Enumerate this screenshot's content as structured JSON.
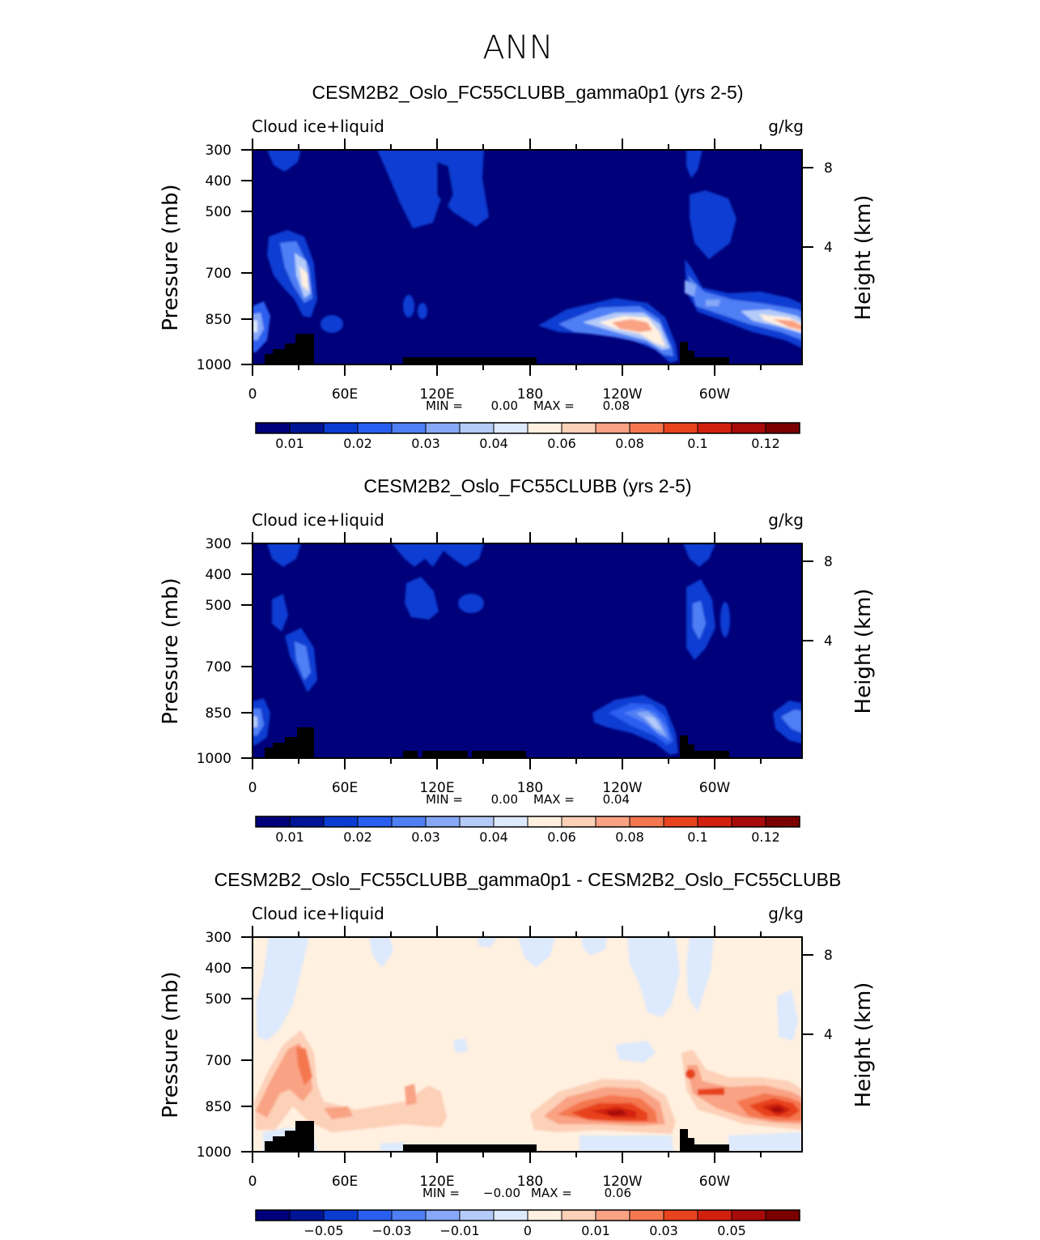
{
  "figure": {
    "title": "ANN"
  },
  "chart_data": [
    {
      "type": "heatmap",
      "title": "CESM2B2_Oslo_FC55CLUBB_gamma0p1 (yrs 2-5)",
      "left_string": "Cloud ice+liquid",
      "right_string": "g/kg",
      "ylabel": "Pressure (mb)",
      "y2label": "Height (km)",
      "xticks": [
        "0",
        "60E",
        "120E",
        "180",
        "120W",
        "60W"
      ],
      "yticks": [
        "300",
        "400",
        "500",
        "700",
        "850",
        "1000"
      ],
      "y2ticks": [
        "8",
        "4"
      ],
      "min_label": "MIN =",
      "min_value": "0.00",
      "max_label": "MAX =",
      "max_value": "0.08",
      "colorbar": {
        "labels": [
          "0.01",
          "0.02",
          "0.03",
          "0.04",
          "0.06",
          "0.08",
          "0.1",
          "0.12"
        ],
        "colors": [
          "#00007a",
          "#001496",
          "#0a3cd2",
          "#2a5ef0",
          "#4f7ff5",
          "#86a8f7",
          "#b4cbf9",
          "#dde9fc",
          "#fff0e0",
          "#fdd0b8",
          "#f9a284",
          "#f47750",
          "#e8431e",
          "#d2200e",
          "#a80a0a",
          "#7a0000"
        ]
      }
    },
    {
      "type": "heatmap",
      "title": "CESM2B2_Oslo_FC55CLUBB (yrs 2-5)",
      "left_string": "Cloud ice+liquid",
      "right_string": "g/kg",
      "ylabel": "Pressure (mb)",
      "y2label": "Height (km)",
      "xticks": [
        "0",
        "60E",
        "120E",
        "180",
        "120W",
        "60W"
      ],
      "yticks": [
        "300",
        "400",
        "500",
        "700",
        "850",
        "1000"
      ],
      "y2ticks": [
        "8",
        "4"
      ],
      "min_label": "MIN =",
      "min_value": "0.00",
      "max_label": "MAX =",
      "max_value": "0.04",
      "colorbar": {
        "labels": [
          "0.01",
          "0.02",
          "0.03",
          "0.04",
          "0.06",
          "0.08",
          "0.1",
          "0.12"
        ],
        "colors": [
          "#00007a",
          "#001496",
          "#0a3cd2",
          "#2a5ef0",
          "#4f7ff5",
          "#86a8f7",
          "#b4cbf9",
          "#dde9fc",
          "#fff0e0",
          "#fdd0b8",
          "#f9a284",
          "#f47750",
          "#e8431e",
          "#d2200e",
          "#a80a0a",
          "#7a0000"
        ]
      }
    },
    {
      "type": "heatmap",
      "title": "CESM2B2_Oslo_FC55CLUBB_gamma0p1 - CESM2B2_Oslo_FC55CLUBB",
      "left_string": "Cloud ice+liquid",
      "right_string": "g/kg",
      "ylabel": "Pressure (mb)",
      "y2label": "Height (km)",
      "xticks": [
        "0",
        "60E",
        "120E",
        "180",
        "120W",
        "60W"
      ],
      "yticks": [
        "300",
        "400",
        "500",
        "700",
        "850",
        "1000"
      ],
      "y2ticks": [
        "8",
        "4"
      ],
      "min_label": "MIN =",
      "min_value": "−0.00",
      "max_label": "MAX =",
      "max_value": "0.06",
      "colorbar": {
        "labels": [
          "−0.05",
          "−0.03",
          "−0.01",
          "0",
          "0.01",
          "0.03",
          "0.05"
        ],
        "colors": [
          "#00007a",
          "#001496",
          "#0a3cd2",
          "#2a5ef0",
          "#4f7ff5",
          "#86a8f7",
          "#b4cbf9",
          "#dde9fc",
          "#fff0e0",
          "#fdd0b8",
          "#f9a284",
          "#f47750",
          "#e8431e",
          "#d2200e",
          "#a80a0a",
          "#7a0000"
        ]
      }
    }
  ]
}
